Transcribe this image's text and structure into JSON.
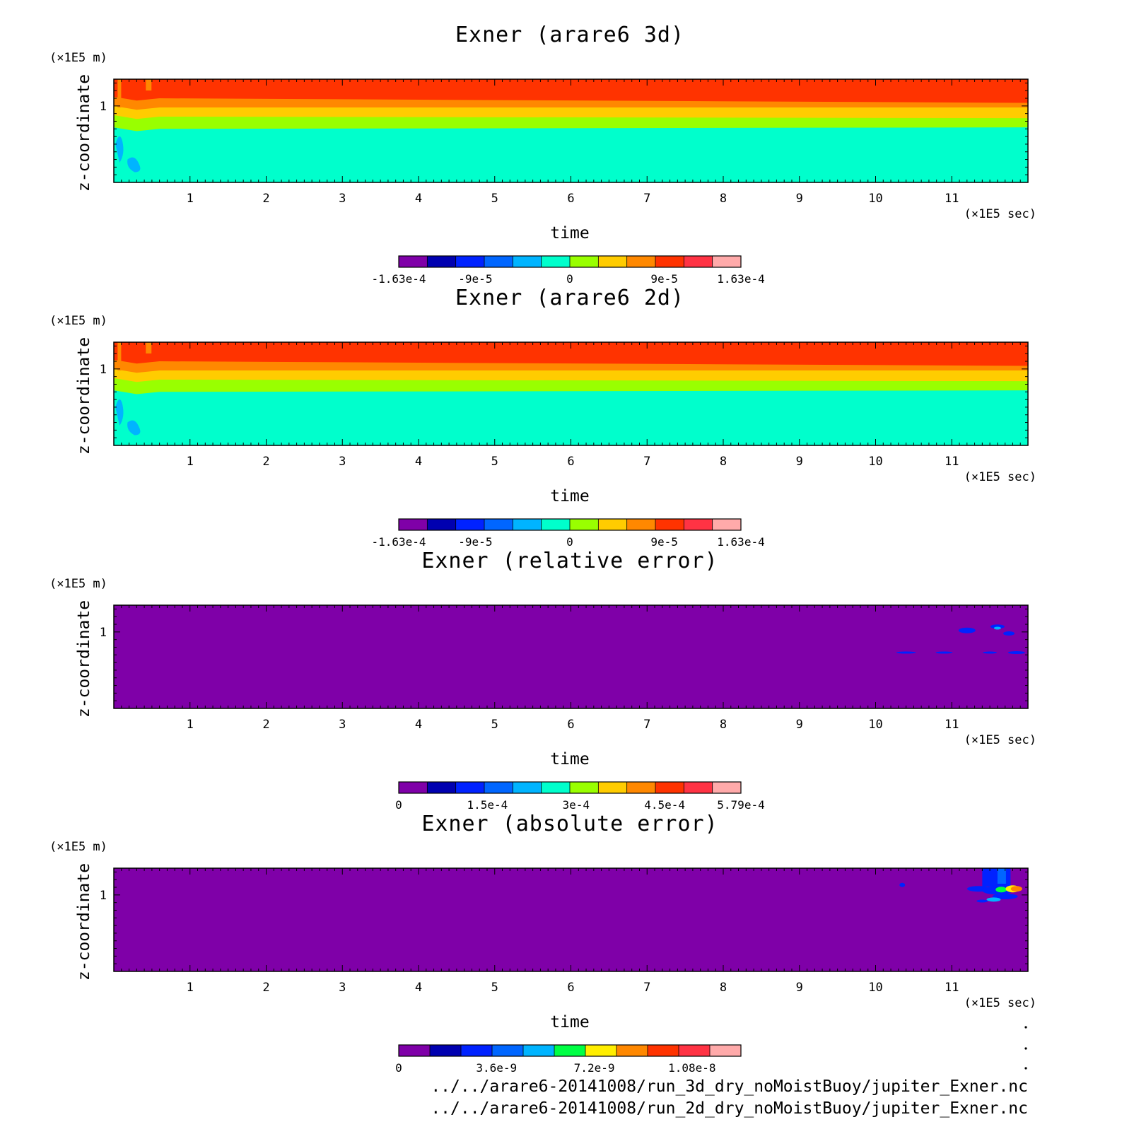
{
  "figure": {
    "file_paths": [
      "../../arare6-20141008/run_3d_dry_noMoistBuoy/jupiter_Exner.nc",
      "../../arare6-20141008/run_2d_dry_noMoistBuoy/jupiter_Exner.nc"
    ]
  },
  "chart_data": [
    {
      "type": "heatmap",
      "title": "Exner (arare6 3d)",
      "xlabel": "time",
      "x_unit": "(×1E5 sec)",
      "ylabel": "z-coordinate",
      "y_unit": "(×1E5 m)",
      "xlim": [
        0,
        12
      ],
      "ylim": [
        0,
        1.35
      ],
      "x_ticks": [
        "1",
        "2",
        "3",
        "4",
        "5",
        "6",
        "7",
        "8",
        "9",
        "10",
        "11"
      ],
      "y_ticks": [
        "1"
      ],
      "colorbar": {
        "range": [
          -0.000163,
          0.000163
        ],
        "tick_labels": [
          "-1.63e-4",
          "-9e-5",
          "0",
          "9e-5",
          "1.63e-4"
        ],
        "colors": [
          "#7f00a8",
          "#0000b0",
          "#0022ff",
          "#0066ff",
          "#00b4ff",
          "#00ffcc",
          "#99ff00",
          "#ffcc00",
          "#ff8800",
          "#ff3300",
          "#ff3344",
          "#ffaaaa"
        ]
      },
      "field": "Exner pressure perturbation, positive aloft, near zero below ~0.7e5 m"
    },
    {
      "type": "heatmap",
      "title": "Exner (arare6 2d)",
      "xlabel": "time",
      "x_unit": "(×1E5 sec)",
      "ylabel": "z-coordinate",
      "y_unit": "(×1E5 m)",
      "xlim": [
        0,
        12
      ],
      "ylim": [
        0,
        1.35
      ],
      "x_ticks": [
        "1",
        "2",
        "3",
        "4",
        "5",
        "6",
        "7",
        "8",
        "9",
        "10",
        "11"
      ],
      "y_ticks": [
        "1"
      ],
      "colorbar": {
        "range": [
          -0.000163,
          0.000163
        ],
        "tick_labels": [
          "-1.63e-4",
          "-9e-5",
          "0",
          "9e-5",
          "1.63e-4"
        ],
        "colors": [
          "#7f00a8",
          "#0000b0",
          "#0022ff",
          "#0066ff",
          "#00b4ff",
          "#00ffcc",
          "#99ff00",
          "#ffcc00",
          "#ff8800",
          "#ff3300",
          "#ff3344",
          "#ffaaaa"
        ]
      },
      "field": "Exner pressure perturbation, positive aloft, near zero below ~0.7e5 m"
    },
    {
      "type": "heatmap",
      "title": "Exner (relative error)",
      "xlabel": "time",
      "x_unit": "(×1E5 sec)",
      "ylabel": "z-coordinate",
      "y_unit": "(×1E5 m)",
      "xlim": [
        0,
        12
      ],
      "ylim": [
        0,
        1.35
      ],
      "x_ticks": [
        "1",
        "2",
        "3",
        "4",
        "5",
        "6",
        "7",
        "8",
        "9",
        "10",
        "11"
      ],
      "y_ticks": [
        "1"
      ],
      "colorbar": {
        "range": [
          0,
          0.000579
        ],
        "tick_labels": [
          "0",
          "1.5e-4",
          "3e-4",
          "4.5e-4",
          "5.79e-4"
        ],
        "colors": [
          "#7f00a8",
          "#0000b0",
          "#0022ff",
          "#0066ff",
          "#00b4ff",
          "#00ffcc",
          "#99ff00",
          "#ffcc00",
          "#ff8800",
          "#ff3300",
          "#ff3344",
          "#ffaaaa"
        ]
      },
      "field": "near zero everywhere, small blue patches after t ≈ 10.2e5 sec"
    },
    {
      "type": "heatmap",
      "title": "Exner (absolute error)",
      "xlabel": "time",
      "x_unit": "(×1E5 sec)",
      "ylabel": "z-coordinate",
      "y_unit": "(×1E5 m)",
      "xlim": [
        0,
        12
      ],
      "ylim": [
        0,
        1.35
      ],
      "x_ticks": [
        "1",
        "2",
        "3",
        "4",
        "5",
        "6",
        "7",
        "8",
        "9",
        "10",
        "11"
      ],
      "y_ticks": [
        "1"
      ],
      "colorbar": {
        "range": [
          0,
          1.26e-08
        ],
        "tick_labels": [
          "0",
          "3.6e-9",
          "7.2e-9",
          "1.08e-8"
        ],
        "colors": [
          "#7f00a8",
          "#0000b0",
          "#0022ff",
          "#0066ff",
          "#00b4ff",
          "#00ff44",
          "#ffee00",
          "#ff8800",
          "#ff3300",
          "#ff3344",
          "#ffaaaa"
        ]
      },
      "field": "near zero everywhere, localized error growth near top after t ≈ 11.4e5 sec"
    }
  ]
}
